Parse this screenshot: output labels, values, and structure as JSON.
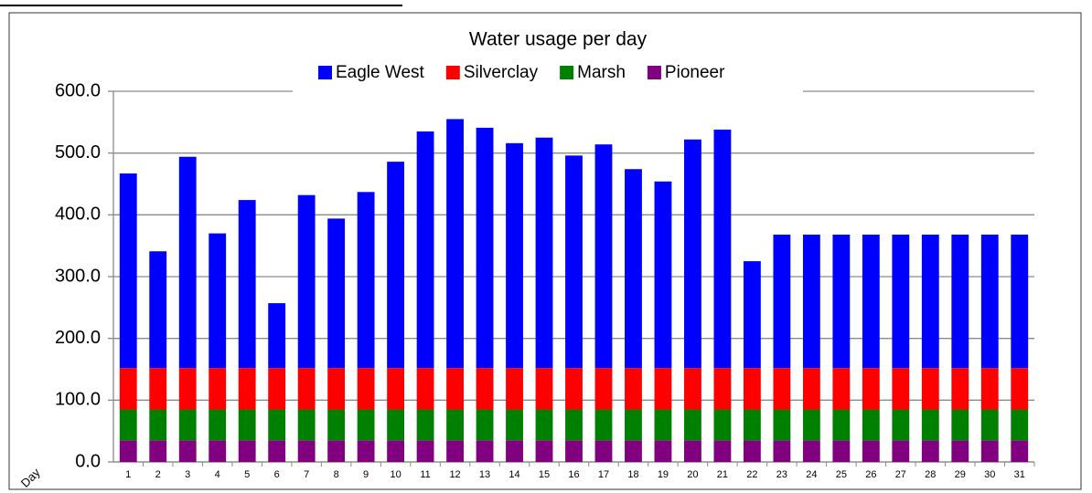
{
  "chart_data": {
    "type": "stacked_bar",
    "title": "Water usage per day",
    "x_label": "Day",
    "categories": [
      "1",
      "2",
      "3",
      "4",
      "5",
      "6",
      "7",
      "8",
      "9",
      "10",
      "11",
      "12",
      "13",
      "14",
      "15",
      "16",
      "17",
      "18",
      "19",
      "20",
      "21",
      "22",
      "23",
      "24",
      "25",
      "26",
      "27",
      "28",
      "29",
      "30",
      "31"
    ],
    "series": [
      {
        "name": "Pioneer",
        "color": "#800080",
        "values": [
          35,
          35,
          35,
          35,
          35,
          35,
          35,
          35,
          35,
          35,
          35,
          35,
          35,
          35,
          35,
          35,
          35,
          35,
          35,
          35,
          35,
          35,
          35,
          35,
          35,
          35,
          35,
          35,
          35,
          35,
          35
        ]
      },
      {
        "name": "Marsh",
        "color": "#008000",
        "values": [
          50,
          50,
          50,
          50,
          50,
          50,
          50,
          50,
          50,
          50,
          50,
          50,
          50,
          50,
          50,
          50,
          50,
          50,
          50,
          50,
          50,
          50,
          50,
          50,
          50,
          50,
          50,
          50,
          50,
          50,
          50
        ]
      },
      {
        "name": "Silverclay",
        "color": "#ff0000",
        "values": [
          67,
          67,
          67,
          67,
          67,
          67,
          67,
          67,
          67,
          67,
          67,
          67,
          67,
          67,
          67,
          67,
          67,
          67,
          67,
          67,
          67,
          67,
          67,
          67,
          67,
          67,
          67,
          67,
          67,
          67,
          67
        ]
      },
      {
        "name": "Eagle West",
        "color": "#0000ff",
        "values": [
          315,
          189,
          342,
          218,
          272,
          105,
          280,
          242,
          285,
          334,
          383,
          403,
          389,
          364,
          373,
          344,
          362,
          322,
          302,
          370,
          386,
          173,
          216,
          216,
          216,
          216,
          216,
          216,
          216,
          216,
          216
        ]
      }
    ],
    "legend_order": [
      3,
      2,
      1,
      0
    ],
    "ylim": [
      0,
      600
    ],
    "yticks": [
      {
        "value": 0,
        "label": "0.0"
      },
      {
        "value": 100,
        "label": "100.0"
      },
      {
        "value": 200,
        "label": "200.0"
      },
      {
        "value": 300,
        "label": "300.0"
      },
      {
        "value": 400,
        "label": "400.0"
      },
      {
        "value": 500,
        "label": "500.0"
      },
      {
        "value": 600,
        "label": "600.0"
      }
    ],
    "grid": true
  }
}
